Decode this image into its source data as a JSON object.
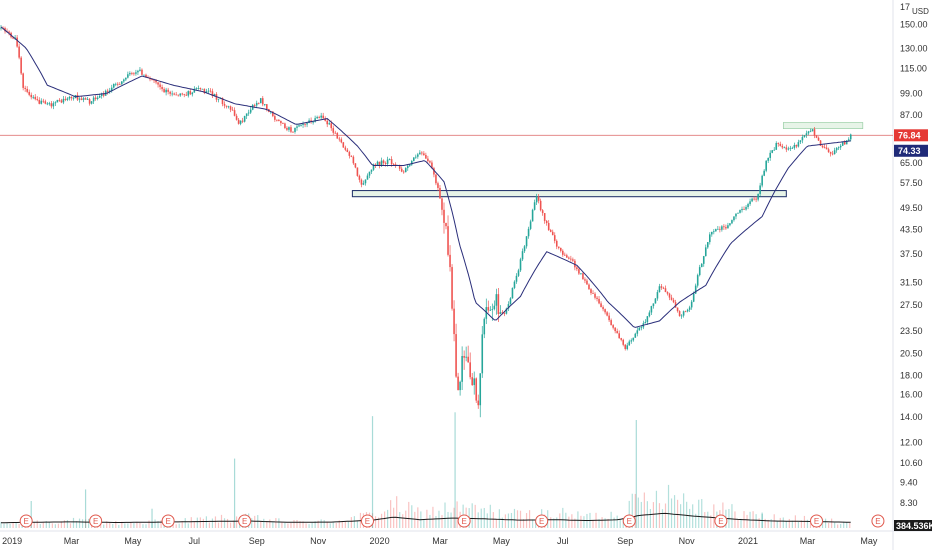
{
  "chart_data": {
    "type": "candlestick",
    "currency": "USD",
    "y_scale": "log",
    "ylim": [
      7.5,
      170
    ],
    "y_ticks": [
      "150.00",
      "130.00",
      "115.00",
      "99.00",
      "87.00",
      "76.00",
      "65.00",
      "57.50",
      "49.50",
      "43.50",
      "37.50",
      "31.50",
      "27.50",
      "23.50",
      "20.50",
      "18.00",
      "16.00",
      "14.00",
      "12.00",
      "10.60",
      "9.40",
      "8.30"
    ],
    "y_tick_values": [
      150,
      130,
      115,
      99,
      87,
      76,
      65,
      57.5,
      49.5,
      43.5,
      37.5,
      31.5,
      27.5,
      23.5,
      20.5,
      18,
      16,
      14,
      12,
      10.6,
      9.4,
      8.3
    ],
    "y_top_label": "17",
    "x_range": [
      "2018-12-20",
      "2021-05-20"
    ],
    "x_ticks": [
      {
        "label": "2019",
        "date": "2019-01-01"
      },
      {
        "label": "Mar",
        "date": "2019-03-01"
      },
      {
        "label": "May",
        "date": "2019-05-01"
      },
      {
        "label": "Jul",
        "date": "2019-07-01"
      },
      {
        "label": "Sep",
        "date": "2019-09-01"
      },
      {
        "label": "Nov",
        "date": "2019-11-01"
      },
      {
        "label": "2020",
        "date": "2020-01-01"
      },
      {
        "label": "Mar",
        "date": "2020-03-01"
      },
      {
        "label": "May",
        "date": "2020-05-01"
      },
      {
        "label": "Jul",
        "date": "2020-07-01"
      },
      {
        "label": "Sep",
        "date": "2020-09-01"
      },
      {
        "label": "Nov",
        "date": "2020-11-01"
      },
      {
        "label": "2021",
        "date": "2021-01-01"
      },
      {
        "label": "Mar",
        "date": "2021-03-01"
      },
      {
        "label": "May",
        "date": "2021-05-01"
      }
    ],
    "price_path": [
      [
        "2018-12-21",
        147
      ],
      [
        "2019-01-05",
        138
      ],
      [
        "2019-01-12",
        103
      ],
      [
        "2019-01-20",
        96
      ],
      [
        "2019-02-05",
        92
      ],
      [
        "2019-02-20",
        95
      ],
      [
        "2019-03-05",
        97
      ],
      [
        "2019-03-20",
        94
      ],
      [
        "2019-04-05",
        100
      ],
      [
        "2019-04-20",
        107
      ],
      [
        "2019-05-05",
        114
      ],
      [
        "2019-05-15",
        110
      ],
      [
        "2019-06-01",
        100
      ],
      [
        "2019-06-20",
        98
      ],
      [
        "2019-07-05",
        102
      ],
      [
        "2019-07-20",
        98
      ],
      [
        "2019-08-05",
        91
      ],
      [
        "2019-08-15",
        82
      ],
      [
        "2019-08-25",
        90
      ],
      [
        "2019-09-05",
        95
      ],
      [
        "2019-09-20",
        84
      ],
      [
        "2019-10-05",
        79
      ],
      [
        "2019-10-20",
        82
      ],
      [
        "2019-11-05",
        87
      ],
      [
        "2019-11-20",
        76
      ],
      [
        "2019-12-05",
        66
      ],
      [
        "2019-12-15",
        56
      ],
      [
        "2019-12-25",
        64
      ],
      [
        "2020-01-10",
        66
      ],
      [
        "2020-01-25",
        62
      ],
      [
        "2020-02-10",
        69
      ],
      [
        "2020-02-20",
        65
      ],
      [
        "2020-03-01",
        53
      ],
      [
        "2020-03-08",
        42
      ],
      [
        "2020-03-14",
        25
      ],
      [
        "2020-03-18",
        15
      ],
      [
        "2020-03-24",
        20
      ],
      [
        "2020-04-01",
        18
      ],
      [
        "2020-04-08",
        15
      ],
      [
        "2020-04-15",
        27
      ],
      [
        "2020-04-25",
        28
      ],
      [
        "2020-05-05",
        26
      ],
      [
        "2020-05-15",
        32
      ],
      [
        "2020-05-25",
        40
      ],
      [
        "2020-06-05",
        53
      ],
      [
        "2020-06-12",
        47
      ],
      [
        "2020-06-25",
        39
      ],
      [
        "2020-07-10",
        36
      ],
      [
        "2020-07-25",
        31
      ],
      [
        "2020-08-10",
        27
      ],
      [
        "2020-08-20",
        24
      ],
      [
        "2020-09-01",
        21
      ],
      [
        "2020-09-10",
        23
      ],
      [
        "2020-09-25",
        26
      ],
      [
        "2020-10-05",
        31
      ],
      [
        "2020-10-15",
        29
      ],
      [
        "2020-10-25",
        26
      ],
      [
        "2020-11-05",
        27
      ],
      [
        "2020-11-15",
        35
      ],
      [
        "2020-11-25",
        43
      ],
      [
        "2020-12-10",
        44
      ],
      [
        "2020-12-25",
        49
      ],
      [
        "2021-01-10",
        53
      ],
      [
        "2021-01-20",
        67
      ],
      [
        "2021-01-30",
        73
      ],
      [
        "2021-02-10",
        70
      ],
      [
        "2021-02-20",
        73
      ],
      [
        "2021-03-05",
        80
      ],
      [
        "2021-03-15",
        72
      ],
      [
        "2021-03-25",
        69
      ],
      [
        "2021-04-05",
        73
      ],
      [
        "2021-04-14",
        76.84
      ]
    ],
    "moving_average": [
      [
        "2018-12-21",
        148
      ],
      [
        "2019-01-15",
        130
      ],
      [
        "2019-02-05",
        104
      ],
      [
        "2019-03-05",
        97
      ],
      [
        "2019-04-05",
        99
      ],
      [
        "2019-05-10",
        110
      ],
      [
        "2019-06-10",
        104
      ],
      [
        "2019-07-10",
        100
      ],
      [
        "2019-08-10",
        93
      ],
      [
        "2019-09-10",
        90
      ],
      [
        "2019-10-10",
        82
      ],
      [
        "2019-11-10",
        85
      ],
      [
        "2019-12-10",
        72
      ],
      [
        "2019-12-25",
        64
      ],
      [
        "2020-01-25",
        64
      ],
      [
        "2020-02-15",
        66
      ],
      [
        "2020-03-05",
        58
      ],
      [
        "2020-03-20",
        40
      ],
      [
        "2020-04-05",
        28
      ],
      [
        "2020-04-25",
        25
      ],
      [
        "2020-05-20",
        29
      ],
      [
        "2020-06-15",
        38
      ],
      [
        "2020-07-15",
        35
      ],
      [
        "2020-08-15",
        28
      ],
      [
        "2020-09-10",
        24
      ],
      [
        "2020-10-05",
        25
      ],
      [
        "2020-10-25",
        28
      ],
      [
        "2020-11-20",
        31
      ],
      [
        "2020-12-15",
        40
      ],
      [
        "2021-01-15",
        47
      ],
      [
        "2021-02-10",
        63
      ],
      [
        "2021-03-01",
        72
      ],
      [
        "2021-03-20",
        73
      ],
      [
        "2021-04-14",
        74.33
      ]
    ],
    "volume_profile": [
      [
        "2018-12-21",
        0.3
      ],
      [
        "2019-01-20",
        0.4
      ],
      [
        "2019-03-01",
        0.5
      ],
      [
        "2019-04-15",
        0.35
      ],
      [
        "2019-06-01",
        0.45
      ],
      [
        "2019-07-15",
        0.6
      ],
      [
        "2019-08-25",
        0.7
      ],
      [
        "2019-10-01",
        0.4
      ],
      [
        "2019-11-15",
        0.45
      ],
      [
        "2019-12-25",
        0.9
      ],
      [
        "2020-01-15",
        1.6
      ],
      [
        "2020-02-10",
        1.0
      ],
      [
        "2020-03-15",
        1.4
      ],
      [
        "2020-04-15",
        1.2
      ],
      [
        "2020-05-20",
        0.9
      ],
      [
        "2020-06-25",
        1.0
      ],
      [
        "2020-07-25",
        0.8
      ],
      [
        "2020-08-25",
        1.0
      ],
      [
        "2020-09-15",
        2.0
      ],
      [
        "2020-10-10",
        2.5
      ],
      [
        "2020-11-10",
        1.8
      ],
      [
        "2020-12-20",
        1.1
      ],
      [
        "2021-01-25",
        0.7
      ],
      [
        "2021-03-01",
        0.6
      ],
      [
        "2021-04-14",
        0.4
      ]
    ],
    "volume_spikes": [
      [
        "2019-01-20",
        0.7
      ],
      [
        "2019-03-15",
        1.0
      ],
      [
        "2019-05-20",
        0.5
      ],
      [
        "2019-08-10",
        1.8
      ],
      [
        "2019-12-25",
        2.9
      ],
      [
        "2020-03-16",
        3.0
      ],
      [
        "2020-09-12",
        2.8
      ],
      [
        "2021-01-15",
        0.4
      ]
    ],
    "support_zone": {
      "start": "2019-12-05",
      "end": "2021-02-08",
      "low": 53,
      "high": 55
    },
    "resistance_zone": {
      "start": "2021-02-05",
      "end": "2021-04-25",
      "low": 80,
      "high": 83
    },
    "horizontal_line": 76.84,
    "earnings_dates": [
      "2019-01-15",
      "2019-03-25",
      "2019-06-05",
      "2019-08-20",
      "2019-12-20",
      "2020-03-25",
      "2020-06-10",
      "2020-09-05",
      "2020-12-05",
      "2021-03-10",
      "2021-05-10"
    ],
    "earnings_label": "E",
    "last_price": "76.84",
    "ma_value": "74.33",
    "volume_value": "384.536K",
    "colors": {
      "up": "#26a69a",
      "down": "#ef5350",
      "ma": "#2a2e7a",
      "zone_fill": "#e3f2e4",
      "zone_stroke": "#1b2c66",
      "hline": "#e07a7a",
      "price_tag": "#e53935",
      "ma_tag": "#1f2a78",
      "volume_tag": "#1b1b1b",
      "earnings": "#e0584c"
    }
  }
}
